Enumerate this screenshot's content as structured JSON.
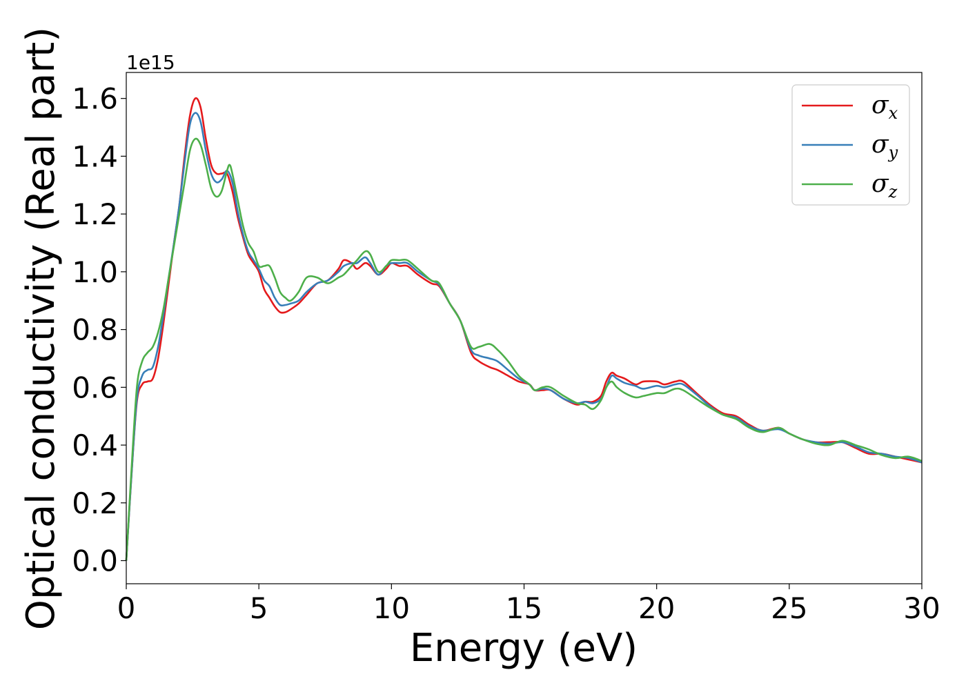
{
  "chart_data": {
    "type": "line",
    "xlabel": "Energy (eV)",
    "ylabel": "Optical conductivity (Real part)",
    "y_offset_label": "1e15",
    "xlim": [
      0,
      30
    ],
    "ylim": [
      -0.08,
      1.69
    ],
    "x_ticks": [
      0,
      5,
      10,
      15,
      20,
      25,
      30
    ],
    "y_ticks": [
      0.0,
      0.2,
      0.4,
      0.6,
      0.8,
      1.0,
      1.2,
      1.4,
      1.6
    ],
    "x_tick_labels": [
      "0",
      "5",
      "10",
      "15",
      "20",
      "25",
      "30"
    ],
    "y_tick_labels": [
      "0.0",
      "0.2",
      "0.4",
      "0.6",
      "0.8",
      "1.0",
      "1.2",
      "1.4",
      "1.6"
    ],
    "grid": false,
    "legend_position": "top-right",
    "series": [
      {
        "name": "σx",
        "symbol": "σ",
        "subscript": "x",
        "color": "#e41a1c",
        "points": [
          [
            0,
            0.0
          ],
          [
            0.2,
            0.3
          ],
          [
            0.4,
            0.55
          ],
          [
            0.6,
            0.61
          ],
          [
            0.8,
            0.62
          ],
          [
            1.0,
            0.63
          ],
          [
            1.2,
            0.7
          ],
          [
            1.4,
            0.82
          ],
          [
            1.6,
            0.96
          ],
          [
            1.8,
            1.1
          ],
          [
            2.0,
            1.23
          ],
          [
            2.2,
            1.4
          ],
          [
            2.4,
            1.54
          ],
          [
            2.6,
            1.6
          ],
          [
            2.8,
            1.57
          ],
          [
            3.0,
            1.46
          ],
          [
            3.2,
            1.37
          ],
          [
            3.4,
            1.34
          ],
          [
            3.6,
            1.34
          ],
          [
            3.8,
            1.34
          ],
          [
            4.0,
            1.28
          ],
          [
            4.2,
            1.19
          ],
          [
            4.4,
            1.12
          ],
          [
            4.6,
            1.06
          ],
          [
            4.8,
            1.03
          ],
          [
            5.0,
            1.0
          ],
          [
            5.2,
            0.94
          ],
          [
            5.4,
            0.91
          ],
          [
            5.6,
            0.88
          ],
          [
            5.8,
            0.86
          ],
          [
            6.0,
            0.86
          ],
          [
            6.2,
            0.87
          ],
          [
            6.5,
            0.89
          ],
          [
            6.8,
            0.92
          ],
          [
            7.2,
            0.96
          ],
          [
            7.6,
            0.97
          ],
          [
            8.0,
            1.01
          ],
          [
            8.2,
            1.04
          ],
          [
            8.5,
            1.03
          ],
          [
            8.7,
            1.01
          ],
          [
            9.0,
            1.03
          ],
          [
            9.2,
            1.02
          ],
          [
            9.5,
            0.99
          ],
          [
            9.8,
            1.01
          ],
          [
            10.0,
            1.03
          ],
          [
            10.3,
            1.02
          ],
          [
            10.6,
            1.02
          ],
          [
            11.0,
            0.99
          ],
          [
            11.5,
            0.96
          ],
          [
            11.8,
            0.95
          ],
          [
            12.2,
            0.89
          ],
          [
            12.6,
            0.83
          ],
          [
            13.0,
            0.72
          ],
          [
            13.3,
            0.69
          ],
          [
            13.7,
            0.67
          ],
          [
            14.0,
            0.66
          ],
          [
            14.4,
            0.64
          ],
          [
            14.8,
            0.62
          ],
          [
            15.2,
            0.61
          ],
          [
            15.4,
            0.59
          ],
          [
            15.7,
            0.59
          ],
          [
            16.0,
            0.59
          ],
          [
            16.5,
            0.56
          ],
          [
            17.0,
            0.54
          ],
          [
            17.3,
            0.55
          ],
          [
            17.6,
            0.55
          ],
          [
            17.9,
            0.57
          ],
          [
            18.1,
            0.62
          ],
          [
            18.3,
            0.65
          ],
          [
            18.5,
            0.64
          ],
          [
            18.8,
            0.63
          ],
          [
            19.2,
            0.61
          ],
          [
            19.5,
            0.62
          ],
          [
            20.0,
            0.62
          ],
          [
            20.3,
            0.61
          ],
          [
            20.7,
            0.62
          ],
          [
            21.0,
            0.62
          ],
          [
            21.5,
            0.58
          ],
          [
            22.0,
            0.54
          ],
          [
            22.5,
            0.51
          ],
          [
            23.0,
            0.5
          ],
          [
            23.5,
            0.47
          ],
          [
            24.0,
            0.45
          ],
          [
            24.6,
            0.46
          ],
          [
            25.0,
            0.44
          ],
          [
            25.5,
            0.42
          ],
          [
            26.0,
            0.41
          ],
          [
            26.5,
            0.41
          ],
          [
            27.0,
            0.41
          ],
          [
            27.5,
            0.39
          ],
          [
            28.0,
            0.37
          ],
          [
            28.5,
            0.37
          ],
          [
            29.0,
            0.36
          ],
          [
            29.5,
            0.35
          ],
          [
            30.0,
            0.34
          ]
        ]
      },
      {
        "name": "σy",
        "symbol": "σ",
        "subscript": "y",
        "color": "#377eb8",
        "points": [
          [
            0,
            0.0
          ],
          [
            0.2,
            0.3
          ],
          [
            0.4,
            0.56
          ],
          [
            0.6,
            0.64
          ],
          [
            0.8,
            0.66
          ],
          [
            1.0,
            0.67
          ],
          [
            1.2,
            0.74
          ],
          [
            1.4,
            0.85
          ],
          [
            1.6,
            0.98
          ],
          [
            1.8,
            1.1
          ],
          [
            2.0,
            1.23
          ],
          [
            2.2,
            1.38
          ],
          [
            2.4,
            1.51
          ],
          [
            2.6,
            1.55
          ],
          [
            2.8,
            1.52
          ],
          [
            3.0,
            1.42
          ],
          [
            3.2,
            1.34
          ],
          [
            3.4,
            1.31
          ],
          [
            3.6,
            1.32
          ],
          [
            3.8,
            1.35
          ],
          [
            4.0,
            1.31
          ],
          [
            4.2,
            1.21
          ],
          [
            4.4,
            1.13
          ],
          [
            4.6,
            1.07
          ],
          [
            4.8,
            1.04
          ],
          [
            5.0,
            1.01
          ],
          [
            5.2,
            0.97
          ],
          [
            5.4,
            0.95
          ],
          [
            5.6,
            0.91
          ],
          [
            5.8,
            0.885
          ],
          [
            6.0,
            0.885
          ],
          [
            6.2,
            0.89
          ],
          [
            6.5,
            0.9
          ],
          [
            6.8,
            0.93
          ],
          [
            7.2,
            0.96
          ],
          [
            7.6,
            0.97
          ],
          [
            8.0,
            1.0
          ],
          [
            8.2,
            1.02
          ],
          [
            8.5,
            1.03
          ],
          [
            8.7,
            1.03
          ],
          [
            9.0,
            1.05
          ],
          [
            9.2,
            1.03
          ],
          [
            9.5,
            0.99
          ],
          [
            9.8,
            1.02
          ],
          [
            10.0,
            1.03
          ],
          [
            10.3,
            1.03
          ],
          [
            10.6,
            1.03
          ],
          [
            11.0,
            1.0
          ],
          [
            11.5,
            0.97
          ],
          [
            11.8,
            0.955
          ],
          [
            12.2,
            0.89
          ],
          [
            12.6,
            0.83
          ],
          [
            13.0,
            0.73
          ],
          [
            13.3,
            0.71
          ],
          [
            13.7,
            0.7
          ],
          [
            14.0,
            0.69
          ],
          [
            14.4,
            0.66
          ],
          [
            14.8,
            0.63
          ],
          [
            15.2,
            0.61
          ],
          [
            15.4,
            0.59
          ],
          [
            15.7,
            0.595
          ],
          [
            16.0,
            0.59
          ],
          [
            16.5,
            0.56
          ],
          [
            17.0,
            0.545
          ],
          [
            17.3,
            0.55
          ],
          [
            17.6,
            0.545
          ],
          [
            17.9,
            0.56
          ],
          [
            18.1,
            0.6
          ],
          [
            18.3,
            0.64
          ],
          [
            18.5,
            0.63
          ],
          [
            18.8,
            0.615
          ],
          [
            19.2,
            0.605
          ],
          [
            19.5,
            0.595
          ],
          [
            20.0,
            0.605
          ],
          [
            20.3,
            0.6
          ],
          [
            20.7,
            0.61
          ],
          [
            21.0,
            0.61
          ],
          [
            21.5,
            0.575
          ],
          [
            22.0,
            0.535
          ],
          [
            22.5,
            0.505
          ],
          [
            23.0,
            0.495
          ],
          [
            23.5,
            0.465
          ],
          [
            24.0,
            0.45
          ],
          [
            24.6,
            0.455
          ],
          [
            25.0,
            0.44
          ],
          [
            25.5,
            0.42
          ],
          [
            26.0,
            0.41
          ],
          [
            26.5,
            0.405
          ],
          [
            27.0,
            0.41
          ],
          [
            27.5,
            0.395
          ],
          [
            28.0,
            0.375
          ],
          [
            28.5,
            0.37
          ],
          [
            29.0,
            0.36
          ],
          [
            29.5,
            0.355
          ],
          [
            30.0,
            0.34
          ]
        ]
      },
      {
        "name": "σz",
        "symbol": "σ",
        "subscript": "z",
        "color": "#4daf4a",
        "points": [
          [
            0,
            0.0
          ],
          [
            0.2,
            0.32
          ],
          [
            0.4,
            0.6
          ],
          [
            0.6,
            0.69
          ],
          [
            0.8,
            0.72
          ],
          [
            1.0,
            0.74
          ],
          [
            1.2,
            0.79
          ],
          [
            1.4,
            0.87
          ],
          [
            1.6,
            0.98
          ],
          [
            1.8,
            1.09
          ],
          [
            2.0,
            1.2
          ],
          [
            2.2,
            1.31
          ],
          [
            2.4,
            1.42
          ],
          [
            2.6,
            1.46
          ],
          [
            2.8,
            1.44
          ],
          [
            3.0,
            1.37
          ],
          [
            3.2,
            1.29
          ],
          [
            3.4,
            1.26
          ],
          [
            3.6,
            1.28
          ],
          [
            3.8,
            1.35
          ],
          [
            3.9,
            1.37
          ],
          [
            4.0,
            1.34
          ],
          [
            4.2,
            1.25
          ],
          [
            4.4,
            1.16
          ],
          [
            4.6,
            1.1
          ],
          [
            4.8,
            1.07
          ],
          [
            5.0,
            1.02
          ],
          [
            5.2,
            1.02
          ],
          [
            5.4,
            1.02
          ],
          [
            5.6,
            0.98
          ],
          [
            5.8,
            0.93
          ],
          [
            6.0,
            0.91
          ],
          [
            6.2,
            0.9
          ],
          [
            6.5,
            0.93
          ],
          [
            6.8,
            0.98
          ],
          [
            7.2,
            0.98
          ],
          [
            7.6,
            0.96
          ],
          [
            8.0,
            0.98
          ],
          [
            8.2,
            0.99
          ],
          [
            8.5,
            1.02
          ],
          [
            8.7,
            1.04
          ],
          [
            9.0,
            1.07
          ],
          [
            9.2,
            1.06
          ],
          [
            9.5,
            1.0
          ],
          [
            9.8,
            1.02
          ],
          [
            10.0,
            1.04
          ],
          [
            10.3,
            1.04
          ],
          [
            10.6,
            1.04
          ],
          [
            11.0,
            1.01
          ],
          [
            11.5,
            0.97
          ],
          [
            11.8,
            0.96
          ],
          [
            12.2,
            0.89
          ],
          [
            12.6,
            0.83
          ],
          [
            13.0,
            0.74
          ],
          [
            13.3,
            0.74
          ],
          [
            13.7,
            0.75
          ],
          [
            14.0,
            0.73
          ],
          [
            14.4,
            0.69
          ],
          [
            14.8,
            0.64
          ],
          [
            15.2,
            0.61
          ],
          [
            15.4,
            0.59
          ],
          [
            15.7,
            0.6
          ],
          [
            16.0,
            0.6
          ],
          [
            16.5,
            0.57
          ],
          [
            17.0,
            0.545
          ],
          [
            17.3,
            0.54
          ],
          [
            17.6,
            0.525
          ],
          [
            17.9,
            0.555
          ],
          [
            18.1,
            0.6
          ],
          [
            18.3,
            0.62
          ],
          [
            18.5,
            0.6
          ],
          [
            18.8,
            0.58
          ],
          [
            19.2,
            0.565
          ],
          [
            19.5,
            0.57
          ],
          [
            20.0,
            0.58
          ],
          [
            20.3,
            0.58
          ],
          [
            20.7,
            0.595
          ],
          [
            21.0,
            0.59
          ],
          [
            21.5,
            0.56
          ],
          [
            22.0,
            0.53
          ],
          [
            22.5,
            0.505
          ],
          [
            23.0,
            0.49
          ],
          [
            23.5,
            0.46
          ],
          [
            24.0,
            0.445
          ],
          [
            24.6,
            0.46
          ],
          [
            25.0,
            0.44
          ],
          [
            25.5,
            0.42
          ],
          [
            26.0,
            0.405
          ],
          [
            26.5,
            0.4
          ],
          [
            27.0,
            0.415
          ],
          [
            27.5,
            0.4
          ],
          [
            28.0,
            0.385
          ],
          [
            28.5,
            0.365
          ],
          [
            29.0,
            0.355
          ],
          [
            29.5,
            0.36
          ],
          [
            30.0,
            0.345
          ]
        ]
      }
    ]
  }
}
